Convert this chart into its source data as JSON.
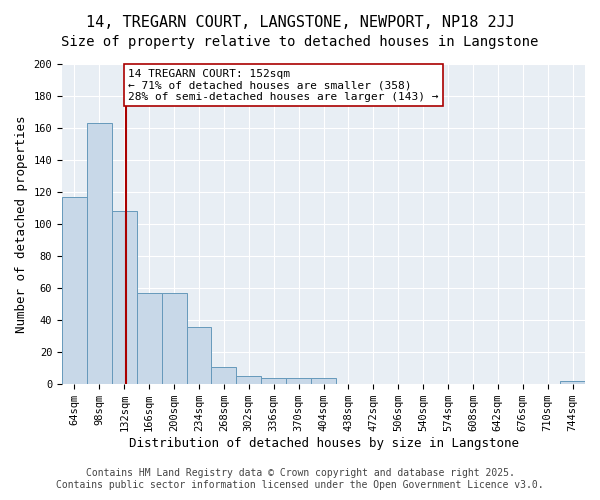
{
  "title": "14, TREGARN COURT, LANGSTONE, NEWPORT, NP18 2JJ",
  "subtitle": "Size of property relative to detached houses in Langstone",
  "xlabel": "Distribution of detached houses by size in Langstone",
  "ylabel": "Number of detached properties",
  "bar_edges": [
    64,
    98,
    132,
    166,
    200,
    234,
    268,
    302,
    336,
    370,
    404,
    438,
    472,
    506,
    540,
    574,
    608,
    642,
    676,
    710,
    744
  ],
  "bar_heights": [
    117,
    163,
    108,
    57,
    57,
    36,
    11,
    5,
    4,
    4,
    4,
    0,
    0,
    0,
    0,
    0,
    0,
    0,
    0,
    0,
    2
  ],
  "bar_color": "#c8d8e8",
  "bar_edge_color": "#6699bb",
  "vline_x": 152,
  "vline_color": "#aa0000",
  "annotation_text": "14 TREGARN COURT: 152sqm\n← 71% of detached houses are smaller (358)\n28% of semi-detached houses are larger (143) →",
  "annotation_box_color": "#ffffff",
  "annotation_box_edge_color": "#aa0000",
  "annotation_fontsize": 8,
  "ylim": [
    0,
    200
  ],
  "yticks": [
    0,
    20,
    40,
    60,
    80,
    100,
    120,
    140,
    160,
    180,
    200
  ],
  "bg_color": "#e8eef4",
  "grid_color": "#ffffff",
  "title_fontsize": 11,
  "subtitle_fontsize": 10,
  "xlabel_fontsize": 9,
  "ylabel_fontsize": 9,
  "tick_fontsize": 7.5,
  "footer_text": "Contains HM Land Registry data © Crown copyright and database right 2025.\nContains public sector information licensed under the Open Government Licence v3.0.",
  "footer_fontsize": 7
}
